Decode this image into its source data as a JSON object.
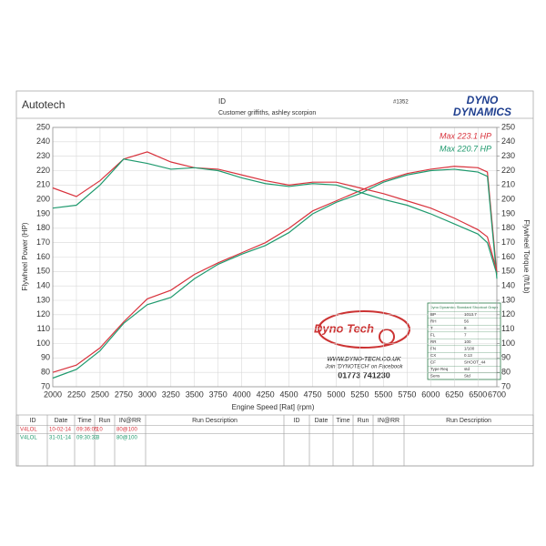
{
  "chart_data": {
    "type": "line",
    "x_label": "Engine Speed [Rat] (rpm)",
    "y_label": "Flywheel Power (HP)",
    "y2_label": "Flywheel Torque (ft/Lb)",
    "x": [
      2000,
      2250,
      2500,
      2750,
      3000,
      3250,
      3500,
      3750,
      4000,
      4250,
      4500,
      4750,
      5000,
      5250,
      5500,
      5750,
      6000,
      6250,
      6500,
      6600,
      6700
    ],
    "series": [
      {
        "name": "Max 223.1 HP",
        "color": "#d8323c",
        "values": [
          80,
          85,
          97,
          115,
          131,
          137,
          148,
          156,
          163,
          170,
          180,
          192,
          199,
          206,
          213,
          218,
          221,
          223,
          222,
          219,
          148
        ]
      },
      {
        "name": "Max 220.7 HP",
        "color": "#1f9a6e",
        "values": [
          76,
          82,
          95,
          114,
          127,
          132,
          145,
          155,
          162,
          168,
          177,
          190,
          198,
          204,
          212,
          217,
          220,
          221,
          219,
          216,
          145
        ]
      },
      {
        "color": "#d8323c",
        "axis": "y2",
        "values": [
          208,
          202,
          213,
          228,
          233,
          226,
          222,
          221,
          217,
          213,
          210,
          212,
          212,
          208,
          204,
          199,
          194,
          187,
          179,
          174,
          150
        ]
      },
      {
        "color": "#1f9a6e",
        "axis": "y2",
        "values": [
          194,
          196,
          210,
          228,
          225,
          221,
          222,
          220,
          215,
          211,
          209,
          211,
          210,
          205,
          200,
          196,
          190,
          183,
          176,
          170,
          148
        ]
      }
    ],
    "xlim": [
      2000,
      6700
    ],
    "xticks": [
      2000,
      2250,
      2500,
      2750,
      3000,
      3250,
      3500,
      3750,
      4000,
      4250,
      4500,
      4750,
      5000,
      5250,
      5500,
      5750,
      6000,
      6250,
      6500,
      6700
    ],
    "ylim": [
      70,
      250
    ],
    "yticks": [
      70,
      80,
      90,
      100,
      110,
      120,
      130,
      140,
      150,
      160,
      170,
      180,
      190,
      200,
      210,
      220,
      230,
      240,
      250
    ],
    "y2lim": [
      70,
      250
    ],
    "y2ticks": [
      70,
      80,
      90,
      100,
      110,
      120,
      130,
      140,
      150,
      160,
      170,
      180,
      190,
      200,
      210,
      220,
      230,
      240,
      250
    ],
    "grid": true,
    "legend": "top-right"
  },
  "header": {
    "company": "Autotech",
    "id_label": "ID",
    "customer": "Customer  griffiths, ashley scorpion",
    "sheet_no": "#1352",
    "brand_top": "DYNO",
    "brand_bottom": "DYNAMICS"
  },
  "logo": {
    "name": "Dyno Tech",
    "url": "WWW.DYNO-TECH.CO.UK",
    "facebook": "Join 'DYNOTECH' on Facebook",
    "phone": "01773 741230"
  },
  "settings": {
    "title": "Dyno Dynamics Standard Shootout Graph",
    "rows": [
      [
        "BP",
        "1013.7"
      ],
      [
        "RH",
        "56"
      ],
      [
        "T",
        "8"
      ],
      [
        "FL",
        "7"
      ],
      [
        "RR",
        "100"
      ],
      [
        "FN",
        "1/100"
      ],
      [
        "CX",
        "0.13"
      ],
      [
        "CF",
        "SHOOT_44"
      ],
      [
        "Type Req",
        "std"
      ],
      [
        "Sens",
        "Std"
      ]
    ]
  },
  "run_table": {
    "columns": [
      "ID",
      "Date",
      "Time",
      "Run",
      "IN@RR",
      "Run Description",
      "ID",
      "Date",
      "Time",
      "Run",
      "IN@RR",
      "Run Description"
    ],
    "rows": [
      [
        "V4LOL",
        "10-02-14",
        "09:36:05",
        "10",
        "80@100"
      ],
      [
        "V4LOL",
        "31-01-14",
        "09:30:33",
        "3",
        "80@100"
      ]
    ]
  }
}
